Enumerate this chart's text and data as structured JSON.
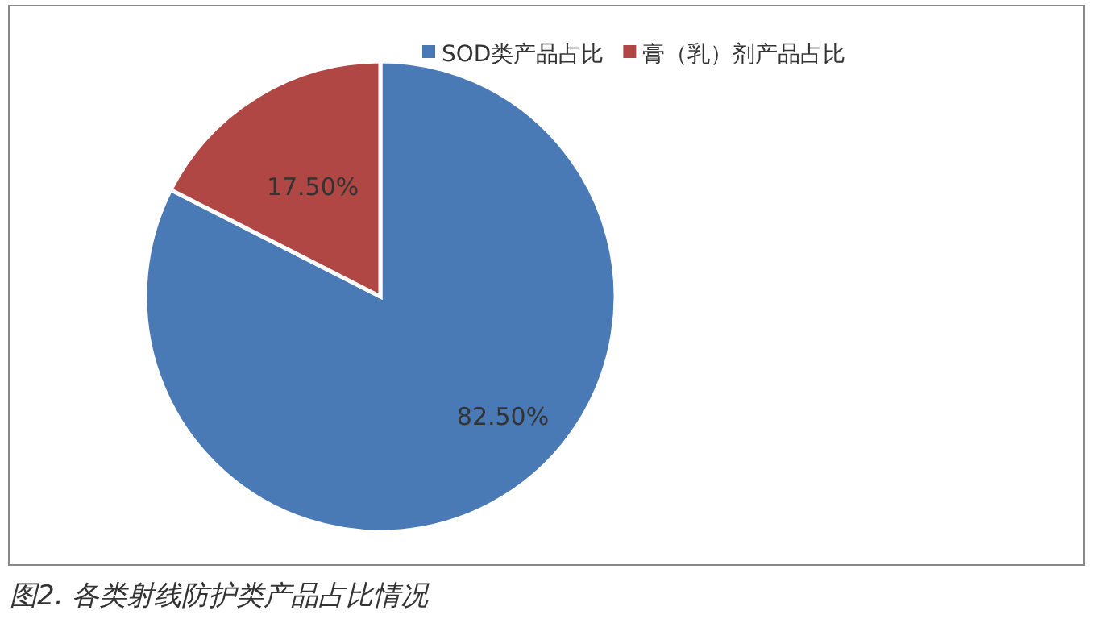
{
  "chart_data": {
    "type": "pie",
    "categories": [
      "SOD类产品占比",
      "膏（乳）剂产品占比"
    ],
    "values": [
      82.5,
      17.5
    ],
    "colors": [
      "#4a7ab5",
      "#b04744"
    ],
    "value_labels": [
      "82.50%",
      "17.50%"
    ],
    "legend": "top right",
    "annotations": [
      "图2. 各类射线防护类产品占比情况"
    ]
  }
}
